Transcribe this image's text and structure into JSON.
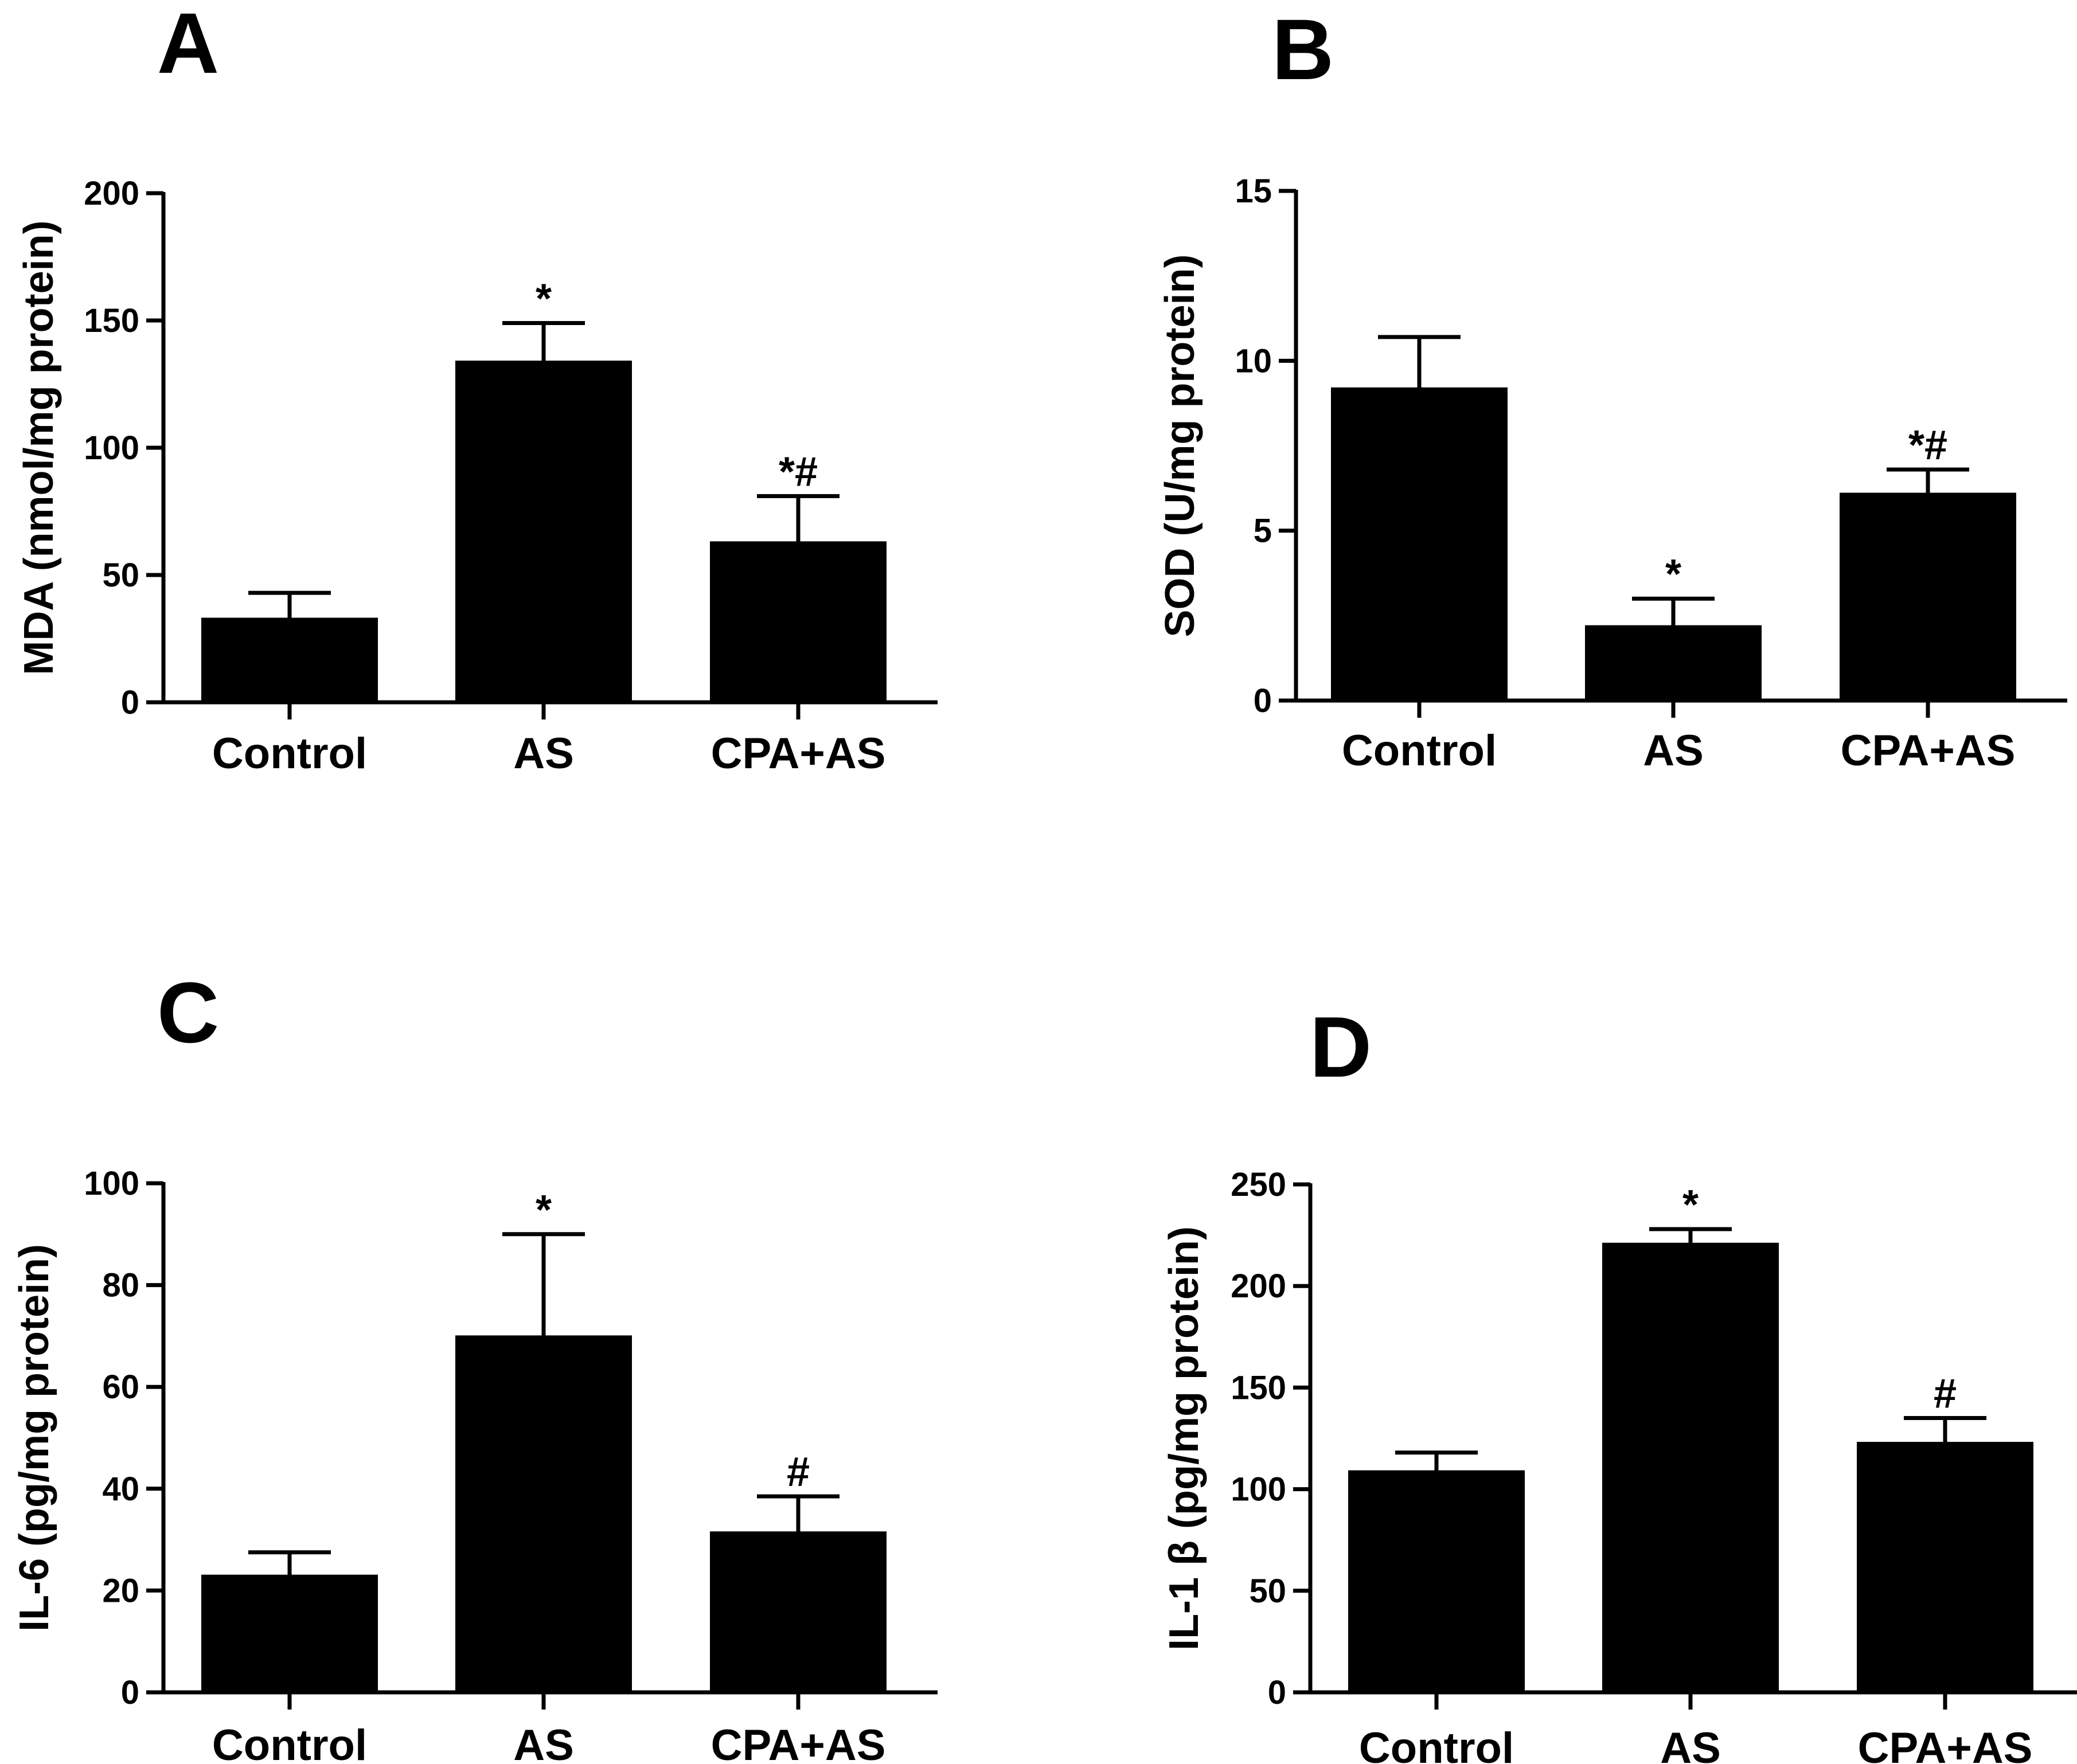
{
  "figure": {
    "background": "#ffffff",
    "bar_color": "#000000"
  },
  "chart_data": [
    {
      "type": "bar",
      "panel_label": "A",
      "title": "",
      "xlabel": "",
      "ylabel": "MDA (nmol/mg protein)",
      "categories": [
        "Control",
        "AS",
        "CPA+AS"
      ],
      "values": [
        33,
        134,
        63
      ],
      "errors": [
        10,
        15,
        18
      ],
      "annotations": [
        "",
        "*",
        "*#"
      ],
      "ylim": [
        0,
        200
      ],
      "yticks": [
        0,
        50,
        100,
        150,
        200
      ],
      "ytick_labels": [
        "0",
        "50",
        "100",
        "150",
        "200"
      ],
      "grid": false,
      "legend": "none"
    },
    {
      "type": "bar",
      "panel_label": "B",
      "title": "",
      "xlabel": "",
      "ylabel": "SOD (U/mg protein)",
      "categories": [
        "Control",
        "AS",
        "CPA+AS"
      ],
      "values": [
        9.2,
        2.2,
        6.1
      ],
      "errors": [
        1.5,
        0.8,
        0.7
      ],
      "annotations": [
        "",
        "*",
        "*#"
      ],
      "ylim": [
        0,
        15
      ],
      "yticks": [
        0,
        5,
        10,
        15
      ],
      "ytick_labels": [
        "0",
        "5",
        "10",
        "15"
      ],
      "grid": false,
      "legend": "none"
    },
    {
      "type": "bar",
      "panel_label": "C",
      "title": "",
      "xlabel": "",
      "ylabel": "IL-6 (pg/mg protein)",
      "categories": [
        "Control",
        "AS",
        "CPA+AS"
      ],
      "values": [
        23,
        70,
        31.5
      ],
      "errors": [
        4.5,
        20,
        7
      ],
      "annotations": [
        "",
        "*",
        "#"
      ],
      "ylim": [
        0,
        100
      ],
      "yticks": [
        0,
        20,
        40,
        60,
        80,
        100
      ],
      "ytick_labels": [
        "0",
        "20",
        "40",
        "60",
        "80",
        "100"
      ],
      "grid": false,
      "legend": "none"
    },
    {
      "type": "bar",
      "panel_label": "D",
      "title": "",
      "xlabel": "",
      "ylabel": "IL-1 β (pg/mg protein)",
      "categories": [
        "Control",
        "AS",
        "CPA+AS"
      ],
      "values": [
        109,
        221,
        123
      ],
      "errors": [
        9,
        7,
        12
      ],
      "annotations": [
        "",
        "*",
        "#"
      ],
      "ylim": [
        0,
        250
      ],
      "yticks": [
        0,
        50,
        100,
        150,
        200,
        250
      ],
      "ytick_labels": [
        "0",
        "50",
        "100",
        "150",
        "200",
        "250"
      ],
      "grid": false,
      "legend": "none"
    }
  ]
}
